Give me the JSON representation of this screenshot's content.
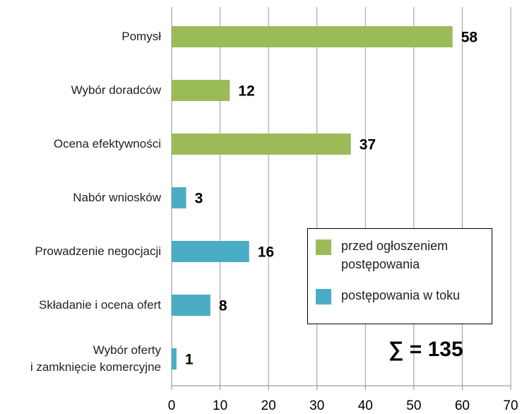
{
  "chart_data": {
    "type": "bar",
    "orientation": "horizontal",
    "categories": [
      "Pomysł",
      "Wybór doradców",
      "Ocena efektywności",
      "Nabór wniosków",
      "Prowadzenie negocjacji",
      "Składanie i ocena ofert",
      "Wybór oferty\ni zamknięcie komercyjne"
    ],
    "series": [
      {
        "name": "przed ogłoszeniem\npostępowania",
        "color": "#9bbb59",
        "values": [
          58,
          12,
          37,
          null,
          null,
          null,
          null
        ]
      },
      {
        "name": "postępowania w toku",
        "color": "#4bacc6",
        "values": [
          null,
          null,
          null,
          3,
          16,
          8,
          1
        ]
      }
    ],
    "xlim": [
      0,
      70
    ],
    "xticks": [
      0,
      10,
      20,
      30,
      40,
      50,
      60,
      70
    ],
    "grid": true,
    "legend": "right",
    "annotations": [
      "∑ = 135"
    ]
  }
}
